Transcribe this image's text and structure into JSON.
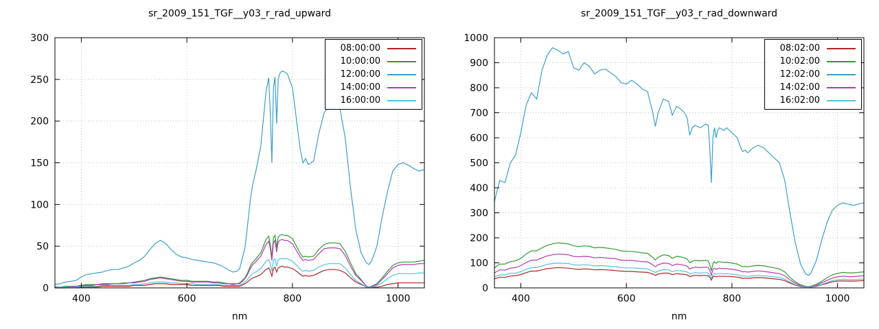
{
  "chart_data": [
    {
      "type": "line",
      "title": "sr_2009_151_TGF__y03_r_rad_upward",
      "xlabel": "nm",
      "ylabel": "",
      "xlim": [
        350,
        1050
      ],
      "ylim": [
        0,
        300
      ],
      "xticks": [
        400,
        600,
        800,
        1000
      ],
      "yticks": [
        0,
        50,
        100,
        150,
        200,
        250,
        300
      ],
      "grid": true,
      "legend_position": "top-right",
      "x": [
        350,
        360,
        370,
        380,
        390,
        400,
        410,
        420,
        430,
        440,
        450,
        460,
        470,
        480,
        490,
        500,
        510,
        520,
        530,
        540,
        550,
        560,
        570,
        580,
        590,
        600,
        610,
        620,
        630,
        640,
        650,
        655,
        660,
        670,
        680,
        687,
        695,
        700,
        710,
        715,
        720,
        725,
        730,
        740,
        750,
        755,
        758,
        761,
        764,
        767,
        770,
        773,
        776,
        780,
        785,
        790,
        800,
        810,
        815,
        820,
        825,
        830,
        840,
        850,
        860,
        870,
        880,
        890,
        900,
        910,
        920,
        930,
        940,
        945,
        950,
        960,
        970,
        980,
        990,
        1000,
        1010,
        1020,
        1030,
        1040,
        1050
      ],
      "series": [
        {
          "name": "08:00:00",
          "color": "#b22222",
          "values": [
            0,
            0,
            0,
            1,
            1,
            1,
            1,
            1,
            1,
            2,
            2,
            2,
            2,
            2,
            2,
            3,
            3,
            3,
            4,
            5,
            5,
            5,
            4,
            4,
            4,
            4,
            3,
            3,
            3,
            3,
            3,
            3,
            3,
            2,
            2,
            2,
            2,
            2,
            5,
            7,
            10,
            12,
            13,
            16,
            22,
            24,
            20,
            14,
            23,
            25,
            19,
            24,
            25,
            26,
            25,
            25,
            23,
            19,
            16,
            14,
            15,
            14,
            15,
            18,
            21,
            22,
            22,
            21,
            18,
            12,
            7,
            4,
            1,
            0,
            1,
            1,
            2,
            4,
            5,
            6,
            6,
            6,
            6,
            6,
            6
          ]
        },
        {
          "name": "10:00:00",
          "color": "#2e9b2e",
          "values": [
            1,
            1,
            2,
            2,
            2,
            3,
            4,
            4,
            4,
            5,
            5,
            5,
            5,
            6,
            6,
            7,
            8,
            9,
            11,
            12,
            13,
            12,
            11,
            10,
            9,
            9,
            8,
            8,
            8,
            8,
            7,
            7,
            7,
            6,
            5,
            5,
            5,
            6,
            12,
            18,
            26,
            31,
            34,
            42,
            58,
            62,
            52,
            37,
            60,
            63,
            48,
            61,
            63,
            64,
            63,
            63,
            59,
            47,
            41,
            37,
            38,
            37,
            38,
            46,
            52,
            54,
            54,
            53,
            44,
            30,
            17,
            10,
            2,
            1,
            2,
            5,
            12,
            20,
            27,
            30,
            31,
            31,
            31,
            32,
            33
          ]
        },
        {
          "name": "12:00:00",
          "color": "#3b9dcc",
          "values": [
            4,
            5,
            7,
            8,
            9,
            13,
            16,
            17,
            18,
            19,
            21,
            22,
            22,
            24,
            26,
            30,
            33,
            38,
            46,
            53,
            57,
            53,
            46,
            40,
            37,
            36,
            34,
            33,
            32,
            31,
            30,
            29,
            28,
            25,
            21,
            19,
            20,
            23,
            48,
            75,
            105,
            125,
            138,
            170,
            235,
            252,
            210,
            150,
            240,
            253,
            197,
            250,
            257,
            260,
            259,
            257,
            240,
            190,
            165,
            150,
            155,
            148,
            152,
            185,
            210,
            218,
            220,
            215,
            180,
            120,
            70,
            42,
            30,
            28,
            32,
            50,
            85,
            115,
            140,
            148,
            150,
            147,
            143,
            140,
            142
          ]
        },
        {
          "name": "14:00:00",
          "color": "#b339b3",
          "values": [
            1,
            1,
            1,
            2,
            2,
            3,
            3,
            3,
            4,
            4,
            4,
            5,
            5,
            5,
            6,
            6,
            7,
            8,
            10,
            11,
            12,
            11,
            10,
            9,
            8,
            8,
            7,
            7,
            7,
            7,
            6,
            6,
            6,
            5,
            5,
            4,
            5,
            5,
            11,
            16,
            23,
            28,
            31,
            38,
            52,
            56,
            47,
            33,
            54,
            57,
            43,
            55,
            57,
            58,
            57,
            57,
            53,
            42,
            37,
            33,
            34,
            33,
            34,
            41,
            47,
            48,
            48,
            47,
            39,
            26,
            15,
            9,
            2,
            1,
            2,
            4,
            10,
            17,
            24,
            27,
            28,
            28,
            28,
            29,
            29
          ]
        },
        {
          "name": "16:00:00",
          "color": "#4fc3dd",
          "values": [
            0,
            1,
            1,
            1,
            1,
            2,
            2,
            2,
            2,
            3,
            3,
            3,
            3,
            3,
            3,
            4,
            4,
            5,
            6,
            7,
            7,
            7,
            6,
            6,
            5,
            5,
            5,
            4,
            4,
            4,
            4,
            4,
            4,
            3,
            3,
            3,
            3,
            3,
            7,
            10,
            14,
            17,
            19,
            23,
            32,
            34,
            29,
            20,
            33,
            35,
            26,
            34,
            35,
            35,
            35,
            35,
            32,
            26,
            22,
            20,
            21,
            20,
            21,
            25,
            28,
            29,
            29,
            29,
            24,
            16,
            9,
            5,
            1,
            1,
            1,
            3,
            6,
            11,
            15,
            17,
            17,
            17,
            17,
            18,
            18
          ]
        }
      ]
    },
    {
      "type": "line",
      "title": "sr_2009_151_TGF__y03_r_rad_downward",
      "xlabel": "nm",
      "ylabel": "",
      "xlim": [
        350,
        1050
      ],
      "ylim": [
        0,
        1000
      ],
      "xticks": [
        400,
        600,
        800,
        1000
      ],
      "yticks": [
        0,
        100,
        200,
        300,
        400,
        500,
        600,
        700,
        800,
        900,
        1000
      ],
      "grid": true,
      "legend_position": "top-right",
      "x": [
        350,
        360,
        370,
        380,
        390,
        400,
        410,
        420,
        430,
        440,
        450,
        460,
        470,
        480,
        490,
        500,
        510,
        520,
        530,
        540,
        550,
        560,
        570,
        580,
        590,
        600,
        610,
        620,
        630,
        640,
        650,
        655,
        660,
        670,
        680,
        687,
        695,
        700,
        710,
        715,
        720,
        725,
        730,
        740,
        750,
        755,
        758,
        761,
        764,
        767,
        770,
        773,
        776,
        780,
        785,
        790,
        800,
        810,
        815,
        820,
        825,
        830,
        840,
        850,
        860,
        870,
        880,
        890,
        900,
        910,
        920,
        930,
        940,
        945,
        950,
        960,
        970,
        980,
        990,
        1000,
        1010,
        1020,
        1030,
        1040,
        1050
      ],
      "series": [
        {
          "name": "08:02:00",
          "color": "#b22222",
          "values": [
            36,
            43,
            42,
            47,
            49,
            53,
            61,
            67,
            67,
            72,
            77,
            79,
            81,
            80,
            79,
            76,
            74,
            76,
            75,
            72,
            73,
            72,
            71,
            69,
            67,
            66,
            66,
            64,
            63,
            62,
            55,
            50,
            55,
            59,
            59,
            53,
            57,
            56,
            54,
            52,
            45,
            48,
            50,
            49,
            50,
            49,
            41,
            31,
            44,
            47,
            44,
            46,
            47,
            46,
            46,
            46,
            45,
            43,
            41,
            38,
            39,
            38,
            40,
            41,
            40,
            38,
            36,
            34,
            29,
            19,
            11,
            5,
            3,
            2,
            3,
            6,
            12,
            18,
            24,
            27,
            28,
            27,
            27,
            28,
            29
          ]
        },
        {
          "name": "10:02:00",
          "color": "#2e9b2e",
          "values": [
            80,
            95,
            95,
            105,
            108,
            118,
            135,
            148,
            148,
            160,
            170,
            176,
            180,
            178,
            176,
            168,
            165,
            168,
            166,
            160,
            162,
            160,
            157,
            154,
            148,
            146,
            146,
            143,
            140,
            138,
            122,
            112,
            122,
            132,
            130,
            118,
            126,
            125,
            120,
            116,
            100,
            106,
            110,
            108,
            110,
            108,
            92,
            68,
            98,
            105,
            98,
            103,
            105,
            103,
            102,
            103,
            99,
            95,
            90,
            85,
            86,
            84,
            88,
            90,
            88,
            84,
            80,
            76,
            64,
            42,
            24,
            12,
            6,
            5,
            7,
            14,
            26,
            40,
            52,
            58,
            62,
            60,
            60,
            62,
            64
          ]
        },
        {
          "name": "12:02:00",
          "color": "#3b9dcc",
          "values": [
            345,
            430,
            420,
            500,
            530,
            620,
            730,
            780,
            755,
            870,
            930,
            960,
            950,
            935,
            945,
            880,
            870,
            900,
            885,
            855,
            870,
            875,
            860,
            845,
            820,
            815,
            830,
            815,
            795,
            785,
            700,
            645,
            700,
            755,
            745,
            690,
            725,
            720,
            700,
            680,
            610,
            640,
            650,
            640,
            655,
            650,
            560,
            420,
            600,
            640,
            600,
            630,
            640,
            635,
            630,
            640,
            620,
            600,
            570,
            545,
            550,
            540,
            560,
            570,
            560,
            540,
            520,
            500,
            430,
            300,
            180,
            95,
            55,
            50,
            60,
            110,
            190,
            260,
            310,
            330,
            340,
            335,
            330,
            335,
            340
          ]
        },
        {
          "name": "14:02:00",
          "color": "#b339b3",
          "values": [
            60,
            72,
            71,
            79,
            81,
            89,
            101,
            111,
            111,
            120,
            128,
            132,
            135,
            134,
            132,
            126,
            124,
            126,
            125,
            120,
            122,
            120,
            118,
            116,
            111,
            110,
            110,
            107,
            105,
            104,
            92,
            84,
            92,
            99,
            98,
            89,
            95,
            94,
            90,
            87,
            75,
            80,
            83,
            81,
            83,
            81,
            69,
            51,
            74,
            79,
            74,
            77,
            79,
            77,
            77,
            77,
            74,
            71,
            68,
            64,
            65,
            63,
            66,
            68,
            66,
            63,
            60,
            57,
            48,
            32,
            18,
            9,
            5,
            4,
            5,
            11,
            20,
            30,
            39,
            44,
            47,
            45,
            45,
            47,
            48
          ]
        },
        {
          "name": "16:02:00",
          "color": "#4fc3dd",
          "values": [
            44,
            52,
            52,
            58,
            59,
            65,
            74,
            81,
            81,
            88,
            94,
            97,
            99,
            98,
            97,
            92,
            91,
            92,
            91,
            88,
            89,
            88,
            86,
            85,
            81,
            80,
            80,
            79,
            77,
            76,
            67,
            62,
            67,
            73,
            72,
            65,
            69,
            69,
            66,
            64,
            55,
            58,
            61,
            59,
            61,
            59,
            51,
            37,
            54,
            58,
            54,
            57,
            58,
            57,
            56,
            57,
            54,
            52,
            50,
            47,
            47,
            46,
            48,
            50,
            48,
            46,
            44,
            42,
            35,
            23,
            13,
            7,
            3,
            3,
            4,
            8,
            14,
            22,
            29,
            32,
            34,
            33,
            33,
            34,
            35
          ]
        }
      ]
    }
  ],
  "style": {
    "grid_color": "#bdbdbd",
    "axis_color": "#000000",
    "background": "#ffffff"
  }
}
